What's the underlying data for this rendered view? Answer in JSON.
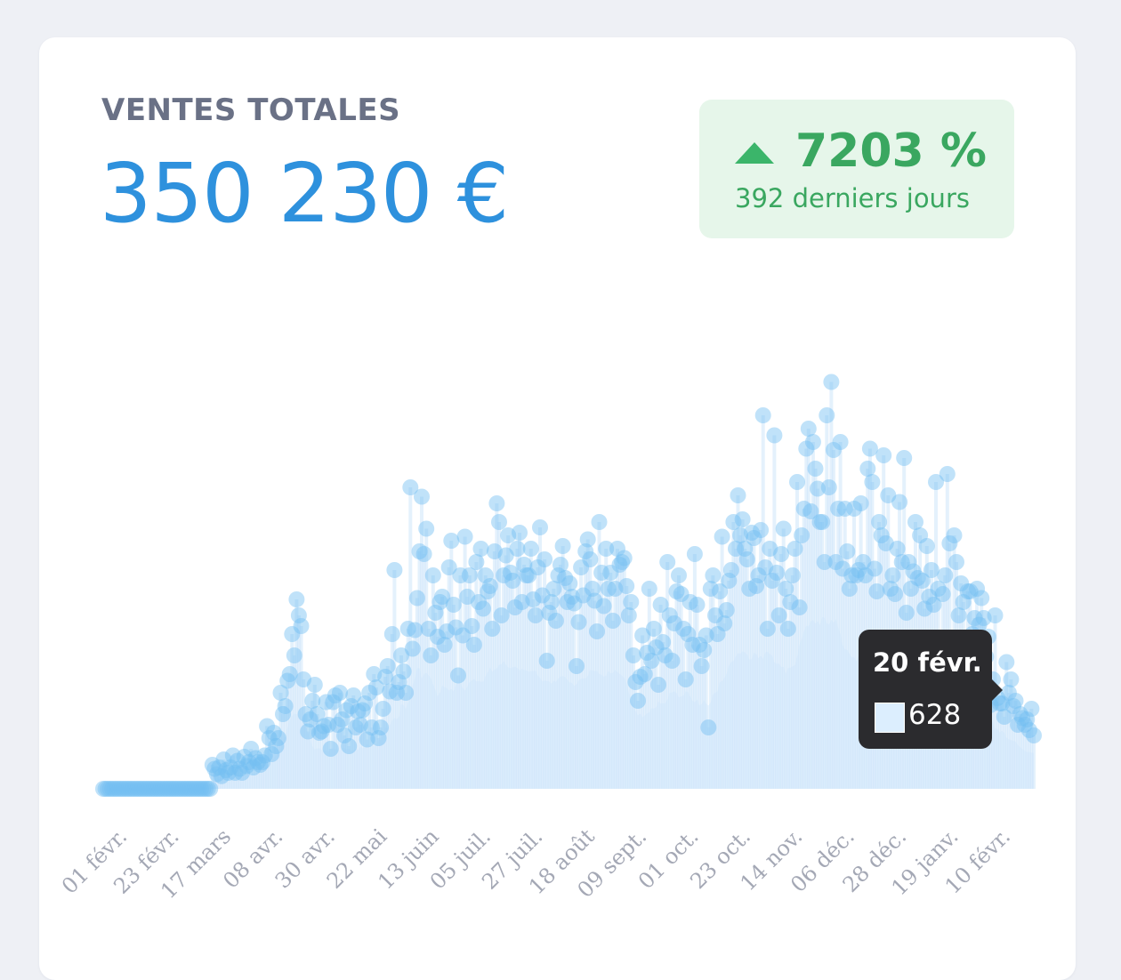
{
  "metric": {
    "label": "VENTES TOTALES",
    "value": "350 230 €"
  },
  "change": {
    "percent": "7203 %",
    "period": "392 derniers jours",
    "direction": "up",
    "color": "#3aa760"
  },
  "tooltip": {
    "date": "20 févr.",
    "value": "628"
  },
  "colors": {
    "accent": "#2e91dd",
    "point": "#74bff2",
    "area": "#e3f2fd",
    "positive": "#3bb56a"
  },
  "chart_data": {
    "type": "scatter",
    "title": "",
    "xlabel": "",
    "ylabel": "",
    "ylim": [
      0,
      3600
    ],
    "x_range": [
      "2023-02-01",
      "2024-02-27"
    ],
    "grid": false,
    "legend": "none",
    "tick_labels": [
      "01 févr.",
      "23 févr.",
      "17 mars",
      "08 avr.",
      "30 avr.",
      "22 mai",
      "13 juin",
      "05 juil.",
      "27 juil.",
      "18 août",
      "09 sept.",
      "01 oct.",
      "23 oct.",
      "14 nov.",
      "06 déc.",
      "28 déc.",
      "19 janv.",
      "10 févr."
    ],
    "series": [
      {
        "values": [
          0,
          0,
          0,
          0,
          0,
          0,
          0,
          0,
          0,
          0,
          0,
          0,
          0,
          0,
          0,
          0,
          0,
          0,
          0,
          0,
          0,
          0,
          0,
          0,
          0,
          0,
          0,
          0,
          0,
          0,
          0,
          0,
          0,
          0,
          0,
          0,
          0,
          0,
          0,
          0,
          0,
          0,
          0,
          0,
          0,
          0,
          0,
          0,
          180,
          150,
          110,
          160,
          95,
          220,
          140,
          120,
          160,
          250,
          120,
          210,
          150,
          120,
          240,
          170,
          200,
          300,
          160,
          230,
          200,
          180,
          200,
          250,
          470,
          380,
          260,
          420,
          320,
          380,
          720,
          560,
          620,
          810,
          860,
          1160,
          1000,
          1420,
          1300,
          1220,
          820,
          560,
          430,
          520,
          660,
          780,
          560,
          420,
          430,
          470,
          650,
          480,
          300,
          650,
          700,
          480,
          720,
          520,
          400,
          590,
          320,
          620,
          700,
          460,
          580,
          480,
          590,
          640,
          370,
          720,
          460,
          860,
          760,
          380,
          460,
          600,
          840,
          920,
          730,
          1160,
          1640,
          720,
          800,
          1000,
          880,
          720,
          1200,
          2260,
          1050,
          1190,
          1430,
          1780,
          2190,
          1760,
          1950,
          1200,
          1000,
          1600,
          1320,
          1140,
          1400,
          1440,
          1080,
          1180,
          1660,
          1860,
          1380,
          1210,
          850,
          1600,
          1150,
          1890,
          1440,
          1600,
          1220,
          1080,
          1700,
          1400,
          1800,
          1350,
          1600,
          1480,
          1520,
          1200,
          1780,
          2140,
          2000,
          1300,
          1600,
          1750,
          1900,
          1620,
          1560,
          1360,
          1800,
          1920,
          1400,
          1680,
          1600,
          1600,
          1800,
          1420,
          1300,
          1660,
          1960,
          1450,
          1720,
          960,
          1320,
          1400,
          1500,
          1260,
          1600,
          1680,
          1820,
          1580,
          1400,
          1540,
          1440,
          1390,
          920,
          1250,
          1660,
          1450,
          1780,
          1870,
          1720,
          1500,
          1410,
          1180,
          2000,
          1620,
          1370,
          1800,
          1500,
          1620,
          1260,
          1500,
          1800,
          1680,
          1700,
          1730,
          1520,
          1300,
          1400,
          1000,
          800,
          660,
          840,
          1150,
          860,
          1020,
          1500,
          960,
          1200,
          1060,
          780,
          1380,
          1100,
          1000,
          1700,
          1300,
          960,
          1240,
          1480,
          1600,
          1460,
          1200,
          820,
          1160,
          1400,
          1080,
          1760,
          1380,
          1080,
          920,
          1040,
          1150,
          460,
          1500,
          1600,
          1300,
          1160,
          1480,
          1890,
          1240,
          1340,
          1560,
          1640,
          2000,
          1800,
          2200,
          1900,
          2020,
          1800,
          1720,
          1500,
          1920,
          1880,
          1520,
          1600,
          1940,
          2800,
          1660,
          1200,
          1800,
          1560,
          2650,
          1620,
          1300,
          1760,
          1950,
          1500,
          1200,
          1400,
          1600,
          1800,
          2300,
          1360,
          1900,
          2100,
          2550,
          2700,
          2080,
          2600,
          2400,
          2250,
          2000,
          2000,
          1700,
          2800,
          2260,
          3050,
          2540,
          1700,
          2100,
          2600,
          1650,
          2100,
          1780,
          1500,
          1600,
          2100,
          1600,
          1640,
          2140,
          1700,
          1600,
          2400,
          2550,
          2300,
          1650,
          1480,
          2000,
          1900,
          2500,
          1840,
          2200,
          1500,
          1600,
          1460,
          1800,
          2150,
          1700,
          2480,
          1320,
          1700,
          1500,
          1630,
          2000,
          1580,
          1900,
          1560,
          1350,
          1820,
          1440,
          1640,
          1380,
          2300,
          1500,
          1000,
          1460,
          1600,
          2360,
          1840,
          1060,
          1900,
          1700,
          1300,
          1540,
          1400,
          1100,
          1480,
          1480,
          1160,
          1280,
          1500,
          1230,
          1430,
          1280,
          990,
          1140,
          628,
          820,
          1300,
          680,
          640,
          640,
          540,
          950,
          720,
          820,
          620,
          660,
          480,
          560,
          530,
          480,
          520,
          440,
          600,
          400
        ]
      }
    ]
  }
}
